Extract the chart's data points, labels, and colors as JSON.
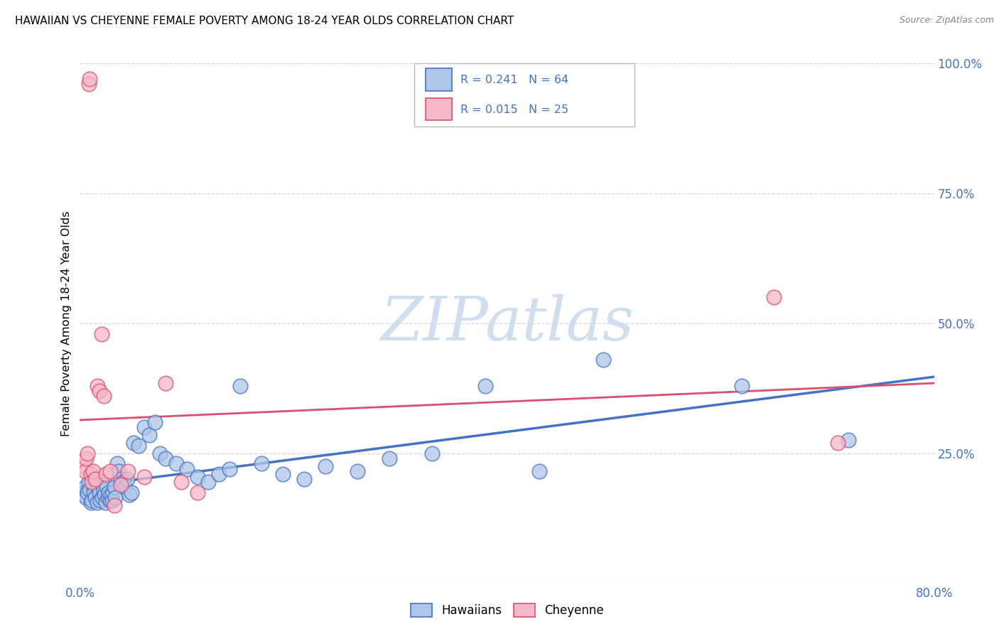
{
  "title": "HAWAIIAN VS CHEYENNE FEMALE POVERTY AMONG 18-24 YEAR OLDS CORRELATION CHART",
  "source": "Source: ZipAtlas.com",
  "ylabel": "Female Poverty Among 18-24 Year Olds",
  "xlim": [
    0.0,
    0.8
  ],
  "ylim": [
    0.0,
    1.0
  ],
  "hawaiian_R": 0.241,
  "hawaiian_N": 64,
  "cheyenne_R": 0.015,
  "cheyenne_N": 25,
  "hawaiian_color": "#aec6e8",
  "cheyenne_color": "#f5b8c8",
  "hawaiian_line_color": "#4472c4",
  "cheyenne_line_color": "#d94f6e",
  "tick_color": "#4472c4",
  "watermark_text": "ZIPatlas",
  "watermark_color": "#d0dff0",
  "hawaiian_x": [
    0.004,
    0.005,
    0.006,
    0.007,
    0.008,
    0.009,
    0.01,
    0.011,
    0.012,
    0.013,
    0.014,
    0.015,
    0.016,
    0.017,
    0.018,
    0.019,
    0.02,
    0.021,
    0.022,
    0.023,
    0.024,
    0.025,
    0.026,
    0.027,
    0.028,
    0.029,
    0.03,
    0.031,
    0.032,
    0.033,
    0.035,
    0.036,
    0.038,
    0.04,
    0.042,
    0.044,
    0.046,
    0.048,
    0.05,
    0.055,
    0.06,
    0.065,
    0.07,
    0.075,
    0.08,
    0.09,
    0.1,
    0.11,
    0.12,
    0.13,
    0.14,
    0.15,
    0.17,
    0.19,
    0.21,
    0.23,
    0.26,
    0.29,
    0.33,
    0.38,
    0.43,
    0.49,
    0.62,
    0.72
  ],
  "hawaiian_y": [
    0.17,
    0.185,
    0.165,
    0.175,
    0.195,
    0.18,
    0.155,
    0.16,
    0.19,
    0.175,
    0.165,
    0.2,
    0.155,
    0.185,
    0.175,
    0.16,
    0.195,
    0.165,
    0.18,
    0.17,
    0.155,
    0.185,
    0.165,
    0.175,
    0.16,
    0.17,
    0.16,
    0.175,
    0.185,
    0.165,
    0.23,
    0.215,
    0.2,
    0.195,
    0.185,
    0.2,
    0.17,
    0.175,
    0.27,
    0.265,
    0.3,
    0.285,
    0.31,
    0.25,
    0.24,
    0.23,
    0.22,
    0.205,
    0.195,
    0.21,
    0.22,
    0.38,
    0.23,
    0.21,
    0.2,
    0.225,
    0.215,
    0.24,
    0.25,
    0.38,
    0.215,
    0.43,
    0.38,
    0.275
  ],
  "cheyenne_x": [
    0.004,
    0.005,
    0.006,
    0.007,
    0.008,
    0.009,
    0.01,
    0.011,
    0.012,
    0.014,
    0.016,
    0.018,
    0.02,
    0.022,
    0.024,
    0.028,
    0.032,
    0.038,
    0.045,
    0.06,
    0.08,
    0.095,
    0.11,
    0.65,
    0.71
  ],
  "cheyenne_y": [
    0.225,
    0.215,
    0.24,
    0.25,
    0.96,
    0.97,
    0.21,
    0.195,
    0.215,
    0.2,
    0.38,
    0.37,
    0.48,
    0.36,
    0.21,
    0.215,
    0.15,
    0.19,
    0.215,
    0.205,
    0.385,
    0.195,
    0.175,
    0.55,
    0.27
  ]
}
